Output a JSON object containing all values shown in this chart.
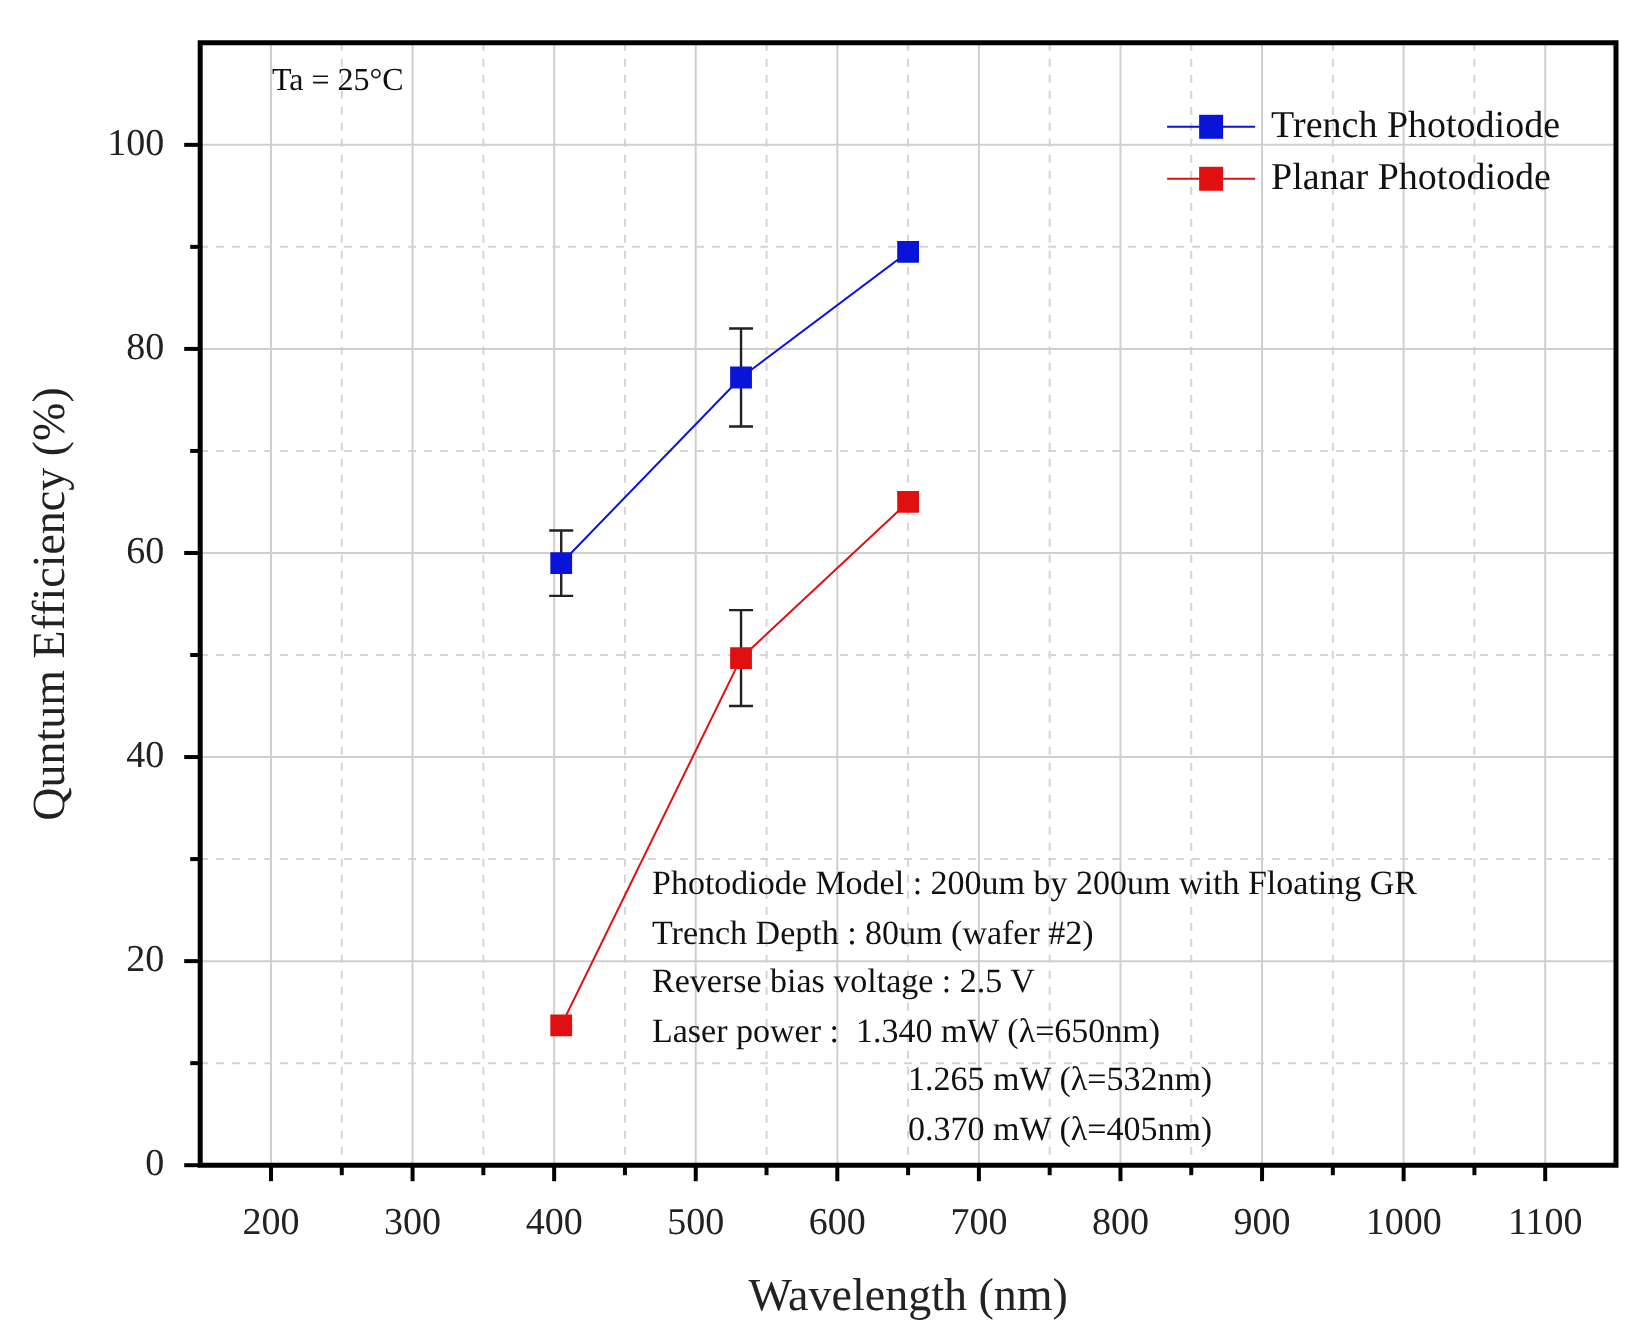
{
  "chart_data": {
    "type": "line",
    "xlabel": "Wavelength (nm)",
    "ylabel": "Quntum Efficiency (%)",
    "x": [
      405,
      532,
      650
    ],
    "series": [
      {
        "name": "Trench Photodiode",
        "color": "#0a14d8",
        "values": [
          59,
          77.2,
          89.5
        ],
        "errors": [
          3.2,
          4.8,
          null
        ]
      },
      {
        "name": "Planar Photodiode",
        "color": "#e01010",
        "values": [
          13.7,
          49.7,
          65
        ],
        "errors": [
          null,
          4.7,
          null
        ]
      }
    ],
    "xlim": [
      150,
      1150
    ],
    "xticks": [
      200,
      {
        "value": 250,
        "label": null
      },
      300,
      {
        "value": 350,
        "label": null
      },
      400,
      {
        "value": 450,
        "label": null
      },
      500,
      {
        "value": 550,
        "label": null
      },
      600,
      {
        "value": 650,
        "label": null
      },
      700,
      {
        "value": 750,
        "label": null
      },
      800,
      {
        "value": 850,
        "label": null
      },
      900,
      {
        "value": 950,
        "label": null
      },
      1000,
      {
        "value": 1050,
        "label": null
      },
      1100
    ],
    "ylim": [
      0,
      110
    ],
    "yticks": [
      0,
      {
        "value": 10,
        "label": null
      },
      20,
      {
        "value": 30,
        "label": null
      },
      40,
      {
        "value": 50,
        "label": null
      },
      60,
      {
        "value": 70,
        "label": null
      },
      80,
      {
        "value": 90,
        "label": null
      },
      100
    ],
    "grid": true,
    "legend": "top right",
    "marker": "square",
    "line_style": "solid",
    "annotations": [
      "Ta = 25°C",
      "Photodiode Model : 200um by 200um with Floating GR",
      "Trench Depth : 80um (wafer #2)",
      "Reverse bias voltage : 2.5 V",
      "Laser power :  1.340 mW (λ=650nm)",
      "1.265 mW (λ=532nm)",
      "0.370 mW (λ=405nm)"
    ]
  }
}
